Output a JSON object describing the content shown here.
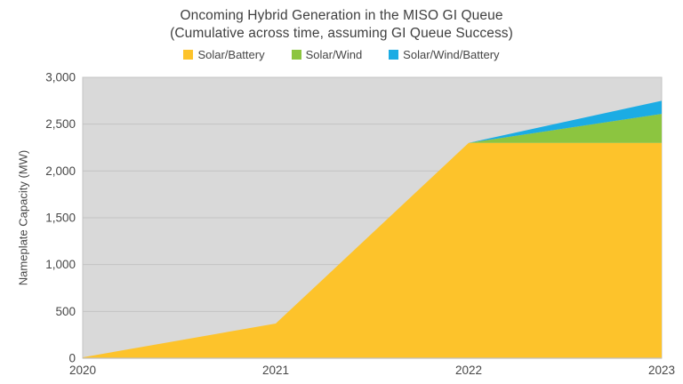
{
  "title": "Oncoming Hybrid Generation in the MISO GI Queue",
  "subtitle": "(Cumulative across time, assuming GI Queue Success)",
  "chart_data": {
    "type": "area",
    "stacked": true,
    "x": [
      "2020",
      "2021",
      "2022",
      "2023"
    ],
    "series": [
      {
        "name": "Solar/Battery",
        "color": "#FDC32B",
        "values": [
          10,
          370,
          2300,
          2300
        ]
      },
      {
        "name": "Solar/Wind",
        "color": "#8CC540",
        "values": [
          0,
          0,
          0,
          310
        ]
      },
      {
        "name": "Solar/Wind/Battery",
        "color": "#1BACE4",
        "values": [
          0,
          0,
          0,
          140
        ]
      }
    ],
    "xlabel": "",
    "ylabel": "Nameplate Capacity (MW)",
    "ylim": [
      0,
      3000
    ],
    "ytick_step": 500,
    "ytick_labels": [
      "0",
      "500",
      "1,000",
      "1,500",
      "2,000",
      "2,500",
      "3,000"
    ],
    "xtick_labels": [
      "2020",
      "2021",
      "2022",
      "2023"
    ],
    "grid": true,
    "legend_position": "top",
    "colors": {
      "plot_background": "#D9D9D9",
      "grid_line": "#C3C3C3",
      "axis_line": "#BFBFBF",
      "title_text": "#3F3F3F",
      "tick_text": "#474747"
    }
  }
}
